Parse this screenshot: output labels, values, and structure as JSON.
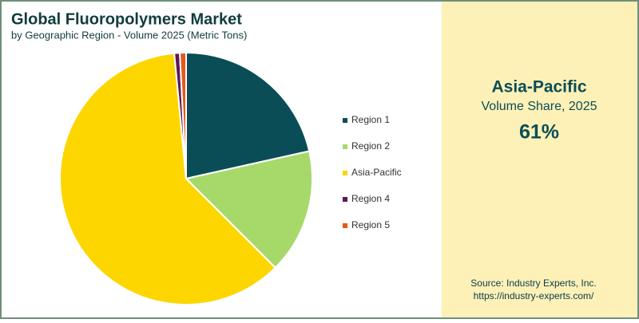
{
  "chart_data": {
    "type": "pie",
    "title": "Global Fluoropolymers Market",
    "subtitle": "by Geographic Region - Volume 2025 (Metric Tons)",
    "categories": [
      "Region 1",
      "Region 2",
      "Asia-Pacific",
      "Region 4",
      "Region 5"
    ],
    "values": [
      21.5,
      16,
      61,
      0.7,
      0.8
    ],
    "colors": [
      "#0b4d57",
      "#a6d96a",
      "#fdd600",
      "#5a1858",
      "#e8561c"
    ]
  },
  "callout": {
    "title": "Asia-Pacific",
    "subtitle": "Volume Share, 2025",
    "value": "61%"
  },
  "source": [
    "Source: Industry Experts, Inc.",
    "https://industry-experts.com/"
  ]
}
